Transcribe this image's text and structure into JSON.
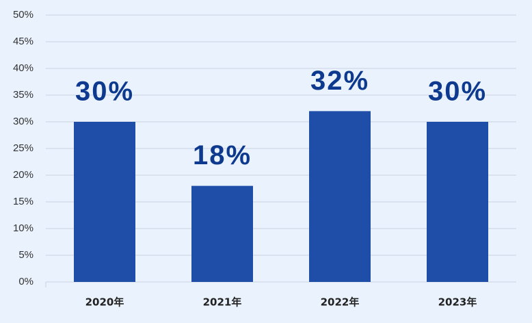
{
  "chart_data": {
    "type": "bar",
    "categories": [
      "2020年",
      "2021年",
      "2022年",
      "2023年"
    ],
    "values": [
      30,
      18,
      32,
      30
    ],
    "value_labels": [
      "30%",
      "18%",
      "32%",
      "30%"
    ],
    "color": "#1f4ea8",
    "ylim": [
      0,
      50
    ],
    "yticks": [
      {
        "value": 0,
        "label": "0%"
      },
      {
        "value": 5,
        "label": "5%"
      },
      {
        "value": 10,
        "label": "10%"
      },
      {
        "value": 15,
        "label": "15%"
      },
      {
        "value": 20,
        "label": "20%"
      },
      {
        "value": 25,
        "label": "25%"
      },
      {
        "value": 30,
        "label": "30%"
      },
      {
        "value": 35,
        "label": "35%"
      },
      {
        "value": 40,
        "label": "40%"
      },
      {
        "value": 45,
        "label": "45%"
      },
      {
        "value": 50,
        "label": "50%"
      }
    ],
    "grid": true
  }
}
